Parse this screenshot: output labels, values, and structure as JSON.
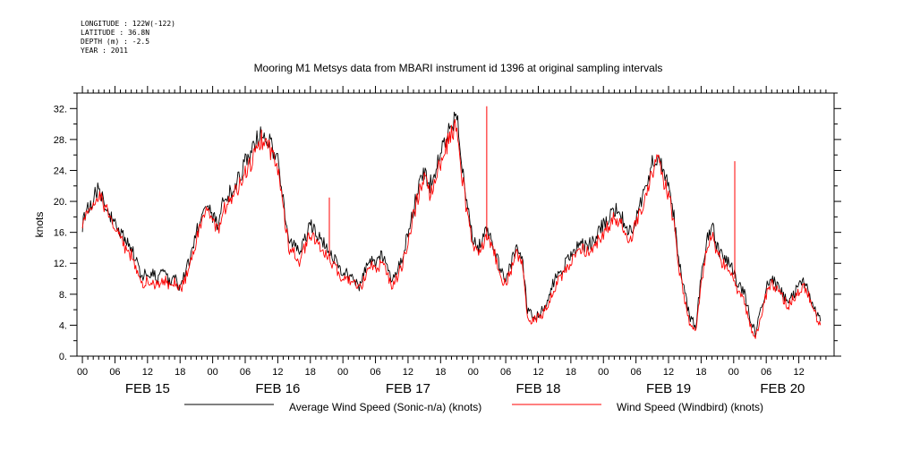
{
  "meta": {
    "longitude": "LONGITUDE : 122W(-122)",
    "latitude": "LATITUDE : 36.8N",
    "depth": "DEPTH (m) : -2.5",
    "year": "YEAR : 2011"
  },
  "chart_data": {
    "type": "line",
    "title": "Mooring M1 Metsys data from MBARI instrument id 1396 at original sampling intervals",
    "xlabel": "",
    "ylabel": "knots",
    "xlim": [
      -1,
      138.5
    ],
    "ylim": [
      0,
      34
    ],
    "x_unit": "hours from FEB 15 00:00",
    "yticks": [
      0,
      4,
      8,
      12,
      16,
      20,
      24,
      28,
      32
    ],
    "ytick_labels": [
      "0.",
      "4.",
      "8.",
      "12.",
      "16.",
      "20.",
      "24.",
      "28.",
      "32."
    ],
    "xtick_hours": [
      0,
      6,
      12,
      18,
      24,
      30,
      36,
      42,
      48,
      54,
      60,
      66,
      72,
      78,
      84,
      90,
      96,
      102,
      108,
      114,
      120,
      126,
      132
    ],
    "xtick_labels": [
      "00",
      "06",
      "12",
      "18",
      "00",
      "06",
      "12",
      "18",
      "00",
      "06",
      "12",
      "18",
      "00",
      "06",
      "12",
      "18",
      "00",
      "06",
      "12",
      "18",
      "00",
      "06",
      "12"
    ],
    "day_labels": [
      {
        "hour": 12,
        "label": "FEB 15"
      },
      {
        "hour": 36,
        "label": "FEB 16"
      },
      {
        "hour": 60,
        "label": "FEB 17"
      },
      {
        "hour": 84,
        "label": "FEB 18"
      },
      {
        "hour": 108,
        "label": "FEB 19"
      },
      {
        "hour": 129,
        "label": "FEB 20"
      }
    ],
    "grid": false,
    "legend_position": "bottom",
    "series": [
      {
        "name": "Average Wind Speed (Sonic-n/a) (knots)",
        "color": "#000000",
        "x": [
          0,
          1,
          2,
          3,
          4,
          5,
          6,
          7,
          8,
          9,
          10,
          11,
          12,
          13,
          14,
          15,
          16,
          17,
          18,
          19,
          20,
          21,
          22,
          23,
          24,
          25,
          26,
          27,
          28,
          29,
          30,
          31,
          32,
          33,
          34,
          35,
          36,
          37,
          38,
          39,
          40,
          41,
          42,
          43,
          44,
          45,
          46,
          47,
          48,
          49,
          50,
          51,
          52,
          53,
          54,
          55,
          56,
          57,
          58,
          59,
          60,
          61,
          62,
          63,
          64,
          65,
          66,
          67,
          68,
          69,
          70,
          71,
          72,
          73,
          74,
          75,
          76,
          77,
          78,
          79,
          80,
          81,
          82,
          83,
          84,
          85,
          86,
          87,
          88,
          89,
          90,
          91,
          92,
          93,
          94,
          95,
          96,
          97,
          98,
          99,
          100,
          101,
          102,
          103,
          104,
          105,
          106,
          107,
          108,
          109,
          110,
          111,
          112,
          113,
          114,
          115,
          116,
          117,
          118,
          119,
          120,
          121,
          122,
          123,
          124,
          125,
          126,
          127,
          128,
          129,
          130,
          131,
          132,
          133,
          134,
          135,
          136
        ],
        "values": [
          17,
          19,
          20.5,
          21.5,
          20,
          18.5,
          17.5,
          16,
          15,
          14,
          12,
          10,
          11,
          10.5,
          10,
          11,
          9.5,
          10,
          9,
          11,
          13,
          16,
          18,
          19.5,
          18,
          17,
          20,
          21,
          22,
          23,
          25,
          26,
          28,
          28.5,
          28,
          27,
          25,
          20,
          15,
          14.5,
          13,
          15,
          17,
          16,
          15,
          14,
          13,
          12,
          11,
          10.5,
          10,
          9,
          11,
          12.5,
          11.5,
          13,
          12,
          10,
          11,
          13,
          16,
          19,
          22,
          24,
          22,
          24,
          26,
          28,
          30,
          31,
          24,
          19,
          15,
          14,
          16,
          15.5,
          14,
          11,
          10,
          12,
          14,
          13,
          6,
          5,
          5.5,
          6,
          8,
          10,
          11,
          12,
          13,
          14,
          14.5,
          14,
          15,
          16,
          17,
          18,
          19,
          18.5,
          17,
          16,
          18,
          20,
          22,
          25,
          26,
          24,
          22,
          18,
          12,
          8,
          5,
          4,
          10,
          15,
          17,
          14,
          13,
          12,
          11,
          9,
          8,
          5,
          3,
          6,
          9,
          10,
          9,
          8,
          7,
          8,
          9,
          9.5,
          8,
          6,
          4.5
        ]
      },
      {
        "name": "Wind Speed (Windbird) (knots)",
        "color": "#ff0000",
        "x": [
          0,
          1,
          2,
          3,
          4,
          5,
          6,
          7,
          8,
          9,
          10,
          11,
          12,
          13,
          14,
          15,
          16,
          17,
          18,
          19,
          20,
          21,
          22,
          23,
          24,
          25,
          26,
          27,
          28,
          29,
          30,
          31,
          32,
          33,
          34,
          35,
          36,
          37,
          38,
          39,
          40,
          41,
          42,
          43,
          44,
          45,
          46,
          47,
          48,
          49,
          50,
          51,
          52,
          53,
          54,
          55,
          56,
          57,
          58,
          59,
          60,
          61,
          62,
          63,
          64,
          65,
          66,
          67,
          68,
          69,
          70,
          71,
          72,
          73,
          74,
          75,
          76,
          77,
          78,
          79,
          80,
          81,
          82,
          83,
          84,
          85,
          86,
          87,
          88,
          89,
          90,
          91,
          92,
          93,
          94,
          95,
          96,
          97,
          98,
          99,
          100,
          101,
          102,
          103,
          104,
          105,
          106,
          107,
          108,
          109,
          110,
          111,
          112,
          113,
          114,
          115,
          116,
          117,
          118,
          119,
          120,
          121,
          122,
          123,
          124,
          125,
          126,
          127,
          128,
          129,
          130,
          131,
          132,
          133,
          134,
          135,
          136
        ],
        "values": [
          16.5,
          18.5,
          20,
          21,
          19.5,
          18,
          17,
          15,
          14,
          13,
          11,
          9,
          10,
          9.5,
          9,
          10,
          9,
          9.5,
          8.5,
          10,
          12,
          15,
          17,
          19,
          17,
          16,
          19,
          20,
          21,
          22,
          24,
          25,
          27,
          28,
          27.5,
          26,
          24,
          19,
          14,
          13.5,
          12,
          14,
          16,
          15,
          14,
          13,
          12,
          11,
          10,
          10,
          9.5,
          8.5,
          10,
          12,
          11,
          12,
          11,
          9,
          10,
          12,
          15,
          18,
          21,
          23,
          21,
          23,
          25,
          27,
          29,
          30,
          23,
          18,
          14,
          13,
          15,
          15,
          13,
          10,
          9.5,
          11,
          13,
          12,
          5,
          4.5,
          5,
          5.5,
          7,
          9,
          10,
          11,
          12,
          13,
          14,
          13.5,
          14,
          15,
          16,
          17,
          18,
          17.5,
          16,
          15,
          17,
          19,
          21,
          24,
          25.5,
          23,
          21,
          17,
          11,
          7,
          4,
          3.5,
          9,
          14,
          16,
          13,
          12,
          11,
          10,
          8,
          7,
          4,
          2.5,
          5,
          8,
          9.5,
          8.5,
          7.5,
          6.5,
          7.5,
          8.5,
          9,
          7.5,
          5.5,
          4
        ]
      }
    ],
    "annotations": [
      {
        "series": 1,
        "x": 45.5,
        "value": 20.5
      },
      {
        "series": 1,
        "x": 74.5,
        "value": 32.3
      },
      {
        "series": 1,
        "x": 120.2,
        "value": 25.2
      }
    ]
  }
}
